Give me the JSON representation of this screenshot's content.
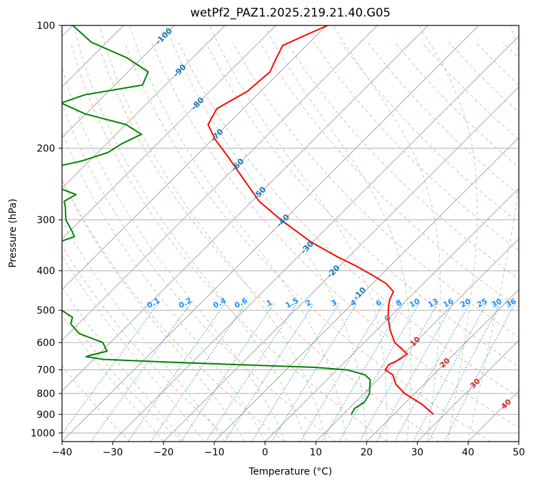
{
  "chart_data": {
    "type": "line",
    "title": "wetPf2_PAZ1.2025.219.21.40.G05",
    "xlabel": "Temperature (°C)",
    "ylabel": "Pressure (hPa)",
    "xlim": [
      -40,
      50
    ],
    "ylim": [
      1050,
      100
    ],
    "y_scale": "log",
    "grid": true,
    "x_ticks": [
      -40,
      -30,
      -20,
      -10,
      0,
      10,
      20,
      30,
      40,
      50
    ],
    "y_ticks": [
      100,
      200,
      300,
      400,
      500,
      600,
      700,
      800,
      900,
      1000
    ],
    "skew_degrees": 45,
    "series": [
      {
        "color": "#ff0000",
        "p": [
          900,
          850,
          800,
          760,
          720,
          700,
          680,
          660,
          640,
          600,
          560,
          520,
          490,
          470,
          450,
          430,
          410,
          390,
          370,
          340,
          300,
          270,
          240,
          210,
          190,
          175,
          160,
          145,
          130,
          120,
          112,
          105,
          100
        ],
        "t": [
          27.8,
          23.5,
          18.0,
          14.5,
          12.0,
          9.5,
          9.2,
          10.3,
          10.7,
          6.0,
          2.7,
          -0.3,
          -2.3,
          -3.5,
          -4.3,
          -7.3,
          -11.7,
          -16.5,
          -22.1,
          -30.3,
          -40.6,
          -48.6,
          -55.6,
          -63.5,
          -69.6,
          -73.8,
          -75.2,
          -72.6,
          -72.0,
          -73.5,
          -74.7,
          -72.0,
          -69.8
        ]
      },
      {
        "color": "#008000",
        "p": [
          900,
          870,
          840,
          800,
          770,
          740,
          720,
          700,
          690,
          680,
          670,
          660,
          650,
          645,
          630,
          600,
          570,
          540,
          520,
          500,
          480,
          470,
          460,
          440,
          420,
          400,
          380,
          360,
          340,
          330,
          320,
          300,
          280,
          270,
          260,
          245,
          235,
          225,
          215,
          205,
          195,
          185,
          175,
          165,
          155,
          148,
          140,
          130,
          120,
          110,
          100
        ],
        "t": [
          11.6,
          11.1,
          11.8,
          11.1,
          9.8,
          8.5,
          6.5,
          2.0,
          -5.0,
          -20.0,
          -35.0,
          -48.0,
          -52.0,
          -51.5,
          -49.0,
          -51.5,
          -58.0,
          -61.5,
          -62.5,
          -66.0,
          -75.0,
          -85.0,
          -98.0,
          -92.0,
          -87.0,
          -84.0,
          -82.0,
          -81.0,
          -80.0,
          -78.0,
          -79.5,
          -83.0,
          -85.5,
          -87.0,
          -86.0,
          -93.5,
          -98.5,
          -97.0,
          -91.5,
          -88.0,
          -87.0,
          -85.0,
          -90.0,
          -100.0,
          -107.0,
          -104.0,
          -94.5,
          -96.0,
          -103.0,
          -113.0,
          -120.0
        ]
      }
    ],
    "overlays": {
      "dry_adiabats": "dashed light red",
      "moist_adiabats": "dashed light green",
      "mixing_ratio_lines": "dotted blue",
      "isotherm_labels": [
        "-100",
        "-90",
        "-80",
        "-70",
        "-60",
        "-50",
        "-40",
        "-30",
        "-20",
        "-10"
      ],
      "mixing_ratio_labels": [
        "0.1",
        "0.2",
        "0.4",
        "0.6",
        "1",
        "1.5",
        "2",
        "3",
        "4",
        "6",
        "8",
        "10",
        "13",
        "16",
        "20",
        "25",
        "30",
        "36"
      ],
      "red_labels": [
        "10",
        "20",
        "30",
        "40"
      ],
      "gray_label": "0"
    }
  }
}
